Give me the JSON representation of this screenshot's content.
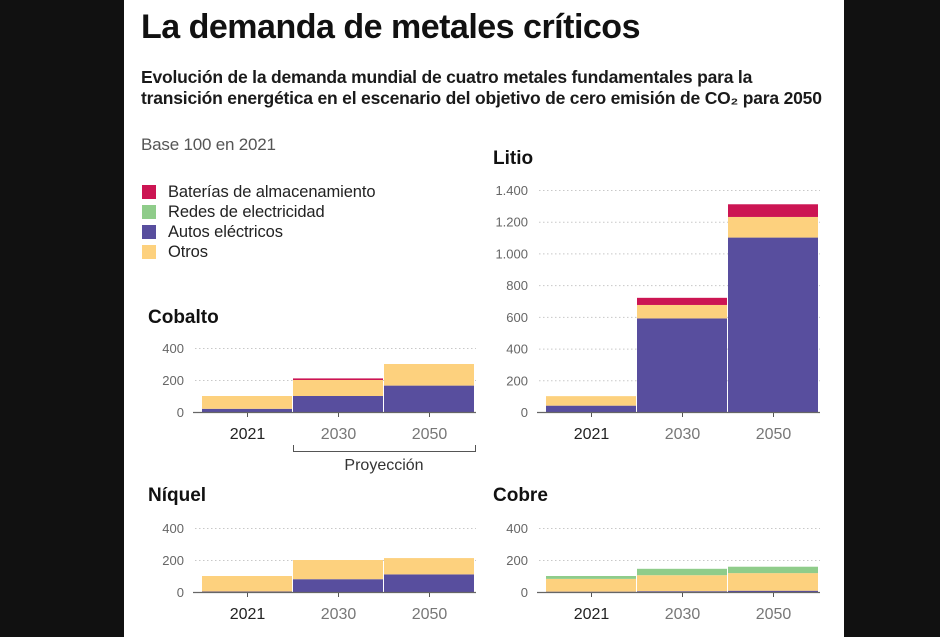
{
  "header": {
    "title": "La demanda de metales críticos",
    "subtitle": "Evolución de la demanda mundial de cuatro metales fundamentales para la transición energética en el escenario del objetivo de cero emisión de CO₂ para 2050",
    "base_note": "Base 100 en 2021"
  },
  "legend": [
    {
      "label": "Baterías de almacenamiento",
      "color": "#cc1553"
    },
    {
      "label": "Redes de electricidad",
      "color": "#8fcc8a"
    },
    {
      "label": "Autos eléctricos",
      "color": "#584e9e"
    },
    {
      "label": "Otros",
      "color": "#fdd17e"
    }
  ],
  "projection_label": "Proyección",
  "chart_data": [
    {
      "type": "bar",
      "stacked": true,
      "title": "Cobalto",
      "categories": [
        "2021",
        "2030",
        "2050"
      ],
      "yticks": [
        0,
        200,
        400
      ],
      "ytick_labels": [
        "0",
        "200",
        "400"
      ],
      "ylim": [
        0,
        400
      ],
      "grid": true,
      "series": [
        {
          "name": "Autos eléctricos",
          "color": "#584e9e",
          "values": [
            20,
            100,
            165
          ]
        },
        {
          "name": "Otros",
          "color": "#fdd17e",
          "values": [
            80,
            100,
            135
          ]
        },
        {
          "name": "Redes de electricidad",
          "color": "#8fcc8a",
          "values": [
            0,
            0,
            0
          ]
        },
        {
          "name": "Baterías de almacenamiento",
          "color": "#cc1553",
          "values": [
            0,
            10,
            0
          ]
        }
      ]
    },
    {
      "type": "bar",
      "stacked": true,
      "title": "Litio",
      "categories": [
        "2021",
        "2030",
        "2050"
      ],
      "yticks": [
        0,
        200,
        400,
        600,
        800,
        1000,
        1200,
        1400
      ],
      "ytick_labels": [
        "0",
        "200",
        "400",
        "600",
        "800",
        "1.000",
        "1.200",
        "1.400"
      ],
      "ylim": [
        0,
        1400
      ],
      "grid": true,
      "series": [
        {
          "name": "Autos eléctricos",
          "color": "#584e9e",
          "values": [
            40,
            590,
            1100
          ]
        },
        {
          "name": "Otros",
          "color": "#fdd17e",
          "values": [
            60,
            85,
            130
          ]
        },
        {
          "name": "Redes de electricidad",
          "color": "#8fcc8a",
          "values": [
            0,
            0,
            0
          ]
        },
        {
          "name": "Baterías de almacenamiento",
          "color": "#cc1553",
          "values": [
            0,
            45,
            80
          ]
        }
      ]
    },
    {
      "type": "bar",
      "stacked": true,
      "title": "Níquel",
      "categories": [
        "2021",
        "2030",
        "2050"
      ],
      "yticks": [
        0,
        200,
        400
      ],
      "ytick_labels": [
        "0",
        "200",
        "400"
      ],
      "ylim": [
        0,
        400
      ],
      "grid": true,
      "series": [
        {
          "name": "Autos eléctricos",
          "color": "#584e9e",
          "values": [
            3,
            80,
            110
          ]
        },
        {
          "name": "Otros",
          "color": "#fdd17e",
          "values": [
            97,
            120,
            102
          ]
        },
        {
          "name": "Redes de electricidad",
          "color": "#8fcc8a",
          "values": [
            0,
            0,
            0
          ]
        },
        {
          "name": "Baterías de almacenamiento",
          "color": "#cc1553",
          "values": [
            0,
            0,
            0
          ]
        }
      ]
    },
    {
      "type": "bar",
      "stacked": true,
      "title": "Cobre",
      "categories": [
        "2021",
        "2030",
        "2050"
      ],
      "yticks": [
        0,
        200,
        400
      ],
      "ytick_labels": [
        "0",
        "200",
        "400"
      ],
      "ylim": [
        0,
        400
      ],
      "grid": true,
      "series": [
        {
          "name": "Autos eléctricos",
          "color": "#584e9e",
          "values": [
            2,
            5,
            8
          ]
        },
        {
          "name": "Otros",
          "color": "#fdd17e",
          "values": [
            80,
            100,
            110
          ]
        },
        {
          "name": "Redes de electricidad",
          "color": "#8fcc8a",
          "values": [
            18,
            40,
            40
          ]
        },
        {
          "name": "Baterías de almacenamiento",
          "color": "#cc1553",
          "values": [
            0,
            0,
            0
          ]
        }
      ]
    }
  ]
}
